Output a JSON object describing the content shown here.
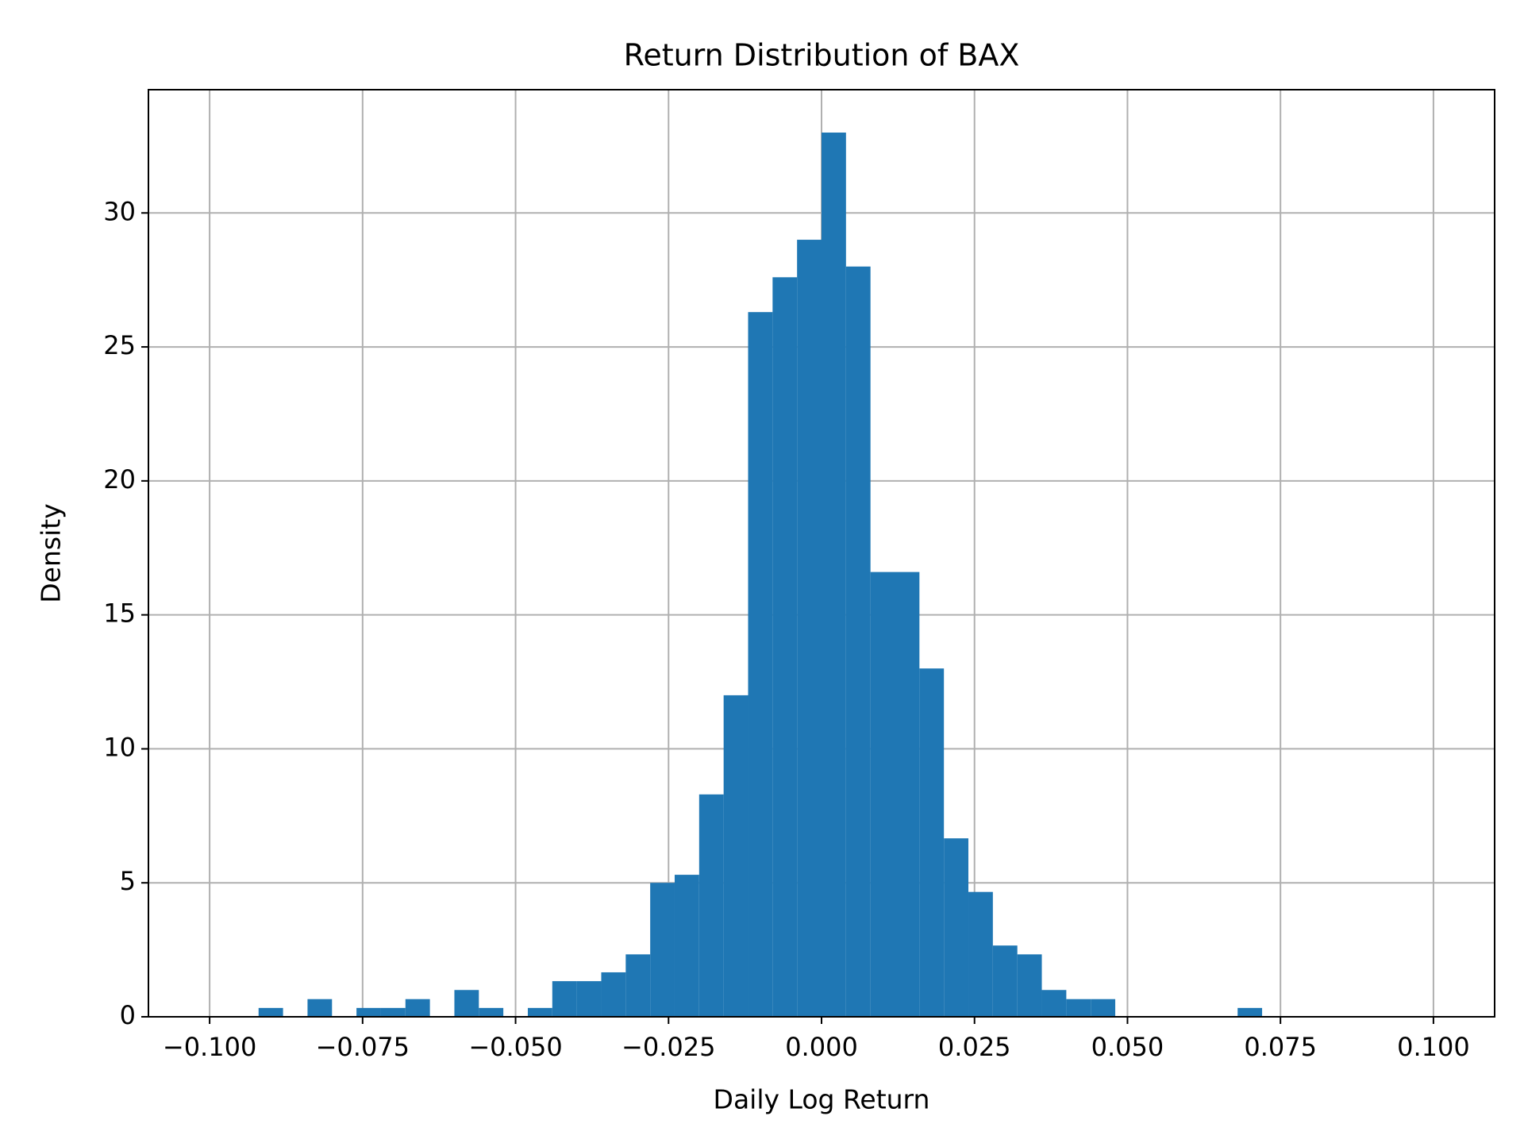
{
  "chart_data": {
    "type": "histogram",
    "title": "Return Distribution of BAX",
    "x_label": "Daily Log Return",
    "y_label": "Density",
    "color": "#1f77b4",
    "grid": true,
    "bins": [
      -0.092,
      -0.088,
      -0.084,
      -0.08,
      -0.076,
      -0.072,
      -0.068,
      -0.064,
      -0.06,
      -0.056,
      -0.052,
      -0.048,
      -0.044,
      -0.04,
      -0.036,
      -0.032,
      -0.028,
      -0.024,
      -0.02,
      -0.016,
      -0.012,
      -0.008,
      -0.004,
      0.0,
      0.004,
      0.008,
      0.012,
      0.016,
      0.02,
      0.024,
      0.028,
      0.032,
      0.036,
      0.04,
      0.044,
      0.048,
      0.052,
      0.056,
      0.06,
      0.064,
      0.068,
      0.072
    ],
    "values": [
      0.33,
      0,
      0.66,
      0,
      0.33,
      0.33,
      0.66,
      0,
      1.0,
      0.33,
      0,
      0.33,
      1.33,
      1.33,
      1.66,
      2.33,
      5.0,
      5.3,
      8.3,
      12.0,
      26.3,
      27.6,
      29.0,
      33.0,
      28.0,
      16.6,
      16.6,
      13.0,
      6.66,
      4.66,
      2.66,
      2.33,
      1.0,
      0.66,
      0.66,
      0,
      0,
      0,
      0,
      0,
      0.33
    ],
    "xlim": [
      -0.11,
      0.11
    ],
    "ylim": [
      0,
      34.6
    ],
    "xticks": [
      {
        "value": -0.1,
        "label": "−0.100"
      },
      {
        "value": -0.075,
        "label": "−0.075"
      },
      {
        "value": -0.05,
        "label": "−0.050"
      },
      {
        "value": -0.025,
        "label": "−0.025"
      },
      {
        "value": 0,
        "label": "0.000"
      },
      0.025,
      {
        "value": 0.05,
        "label": "0.050"
      },
      0.075,
      {
        "value": 0.1,
        "label": "0.100"
      }
    ],
    "yticks": [
      0,
      5,
      10,
      15,
      20,
      25,
      30
    ]
  }
}
